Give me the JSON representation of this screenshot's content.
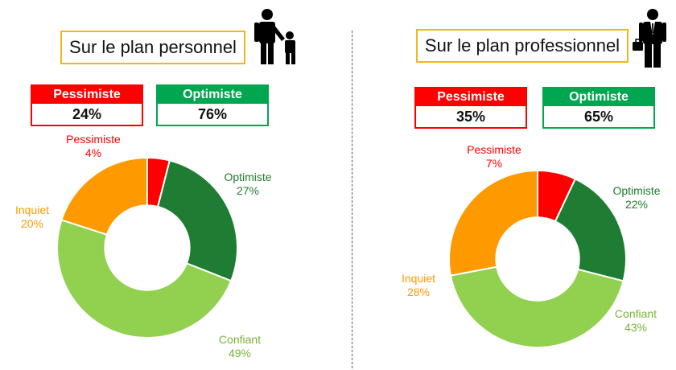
{
  "colors": {
    "pessimiste": "#ff0000",
    "inquiet": "#ff9900",
    "confiant": "#92d050",
    "optimiste": "#1e7d32",
    "summary_pessimiste": "#ff0000",
    "summary_optimiste": "#00a650",
    "title_border": "#f0b81a"
  },
  "icons": {
    "left": "parent-child-icon",
    "right": "businessman-icon"
  },
  "panels": [
    {
      "title": "Sur le plan personnel",
      "summary": [
        {
          "label": "Pessimiste",
          "value": "24%"
        },
        {
          "label": "Optimiste",
          "value": "76%"
        }
      ],
      "labels": [
        {
          "name": "Pessimiste",
          "pct": "4%"
        },
        {
          "name": "Optimiste",
          "pct": "27%"
        },
        {
          "name": "Confiant",
          "pct": "49%"
        },
        {
          "name": "Inquiet",
          "pct": "20%"
        }
      ]
    },
    {
      "title": "Sur le plan professionnel",
      "summary": [
        {
          "label": "Pessimiste",
          "value": "35%"
        },
        {
          "label": "Optimiste",
          "value": "65%"
        }
      ],
      "labels": [
        {
          "name": "Pessimiste",
          "pct": "7%"
        },
        {
          "name": "Optimiste",
          "pct": "22%"
        },
        {
          "name": "Confiant",
          "pct": "43%"
        },
        {
          "name": "Inquiet",
          "pct": "28%"
        }
      ]
    }
  ],
  "chart_data": [
    {
      "type": "pie",
      "title": "Sur le plan personnel",
      "categories": [
        "Pessimiste",
        "Optimiste",
        "Confiant",
        "Inquiet"
      ],
      "values": [
        4,
        27,
        49,
        20
      ],
      "colors": [
        "#ff0000",
        "#1e7d32",
        "#92d050",
        "#ff9900"
      ]
    },
    {
      "type": "pie",
      "title": "Sur le plan professionnel",
      "categories": [
        "Pessimiste",
        "Optimiste",
        "Confiant",
        "Inquiet"
      ],
      "values": [
        7,
        22,
        43,
        28
      ],
      "colors": [
        "#ff0000",
        "#1e7d32",
        "#92d050",
        "#ff9900"
      ]
    }
  ]
}
